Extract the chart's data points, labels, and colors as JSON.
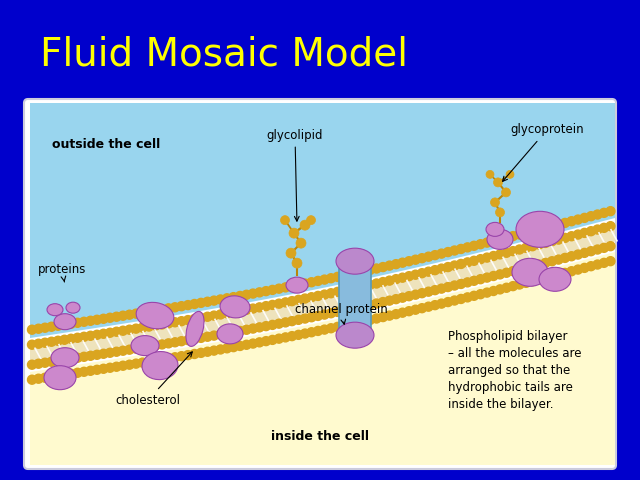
{
  "title": "Fluid Mosaic Model",
  "title_color": "#FFFF00",
  "title_fontsize": 28,
  "bg_color": "#0000CC",
  "outside_cell_color": "#7EC8E3",
  "inside_cell_color": "#FFFAAA",
  "membrane_color": "#DAA520",
  "protein_color": "#CC88CC",
  "channel_color": "#88BBDD",
  "labels": {
    "outside": "outside the cell",
    "inside": "inside the cell",
    "proteins": "proteins",
    "glycolipid": "glycolipid",
    "glycoprotein": "glycoprotein",
    "channel": "channel protein",
    "cholesterol": "cholesterol",
    "phospholipid": "Phospholipid bilayer\n– all the molecules are\narranged so that the\nhydrophobic tails are\ninside the bilayer."
  },
  "label_fontsize": 8.5
}
